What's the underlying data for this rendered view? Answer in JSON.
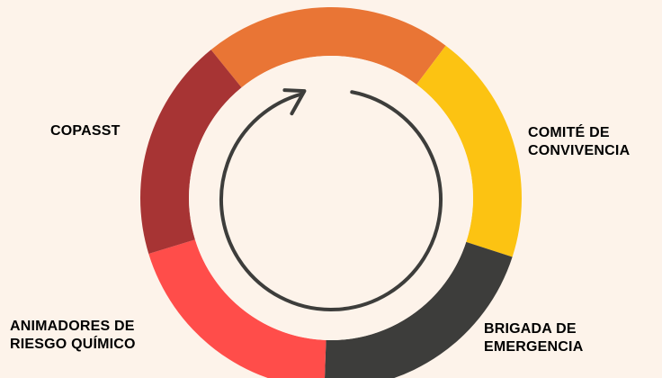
{
  "diagram": {
    "segments": [
      {
        "name": "top",
        "color": "#e97535"
      },
      {
        "name": "comite",
        "color": "#fcc312"
      },
      {
        "name": "brigada",
        "color": "#3d3d3b"
      },
      {
        "name": "animadores",
        "color": "#ff4d4a"
      },
      {
        "name": "copasst",
        "color": "#a73434"
      }
    ],
    "cycle_arrow": {
      "color": "#3d3d3b"
    }
  },
  "labels": {
    "copasst": [
      "COPASST"
    ],
    "comite": [
      "COMITÉ DE",
      "CONVIVENCIA"
    ],
    "animadores": [
      "ANIMADORES DE",
      "RIESGO QUÍMICO"
    ],
    "brigada": [
      "BRIGADA DE",
      "EMERGENCIA"
    ]
  }
}
